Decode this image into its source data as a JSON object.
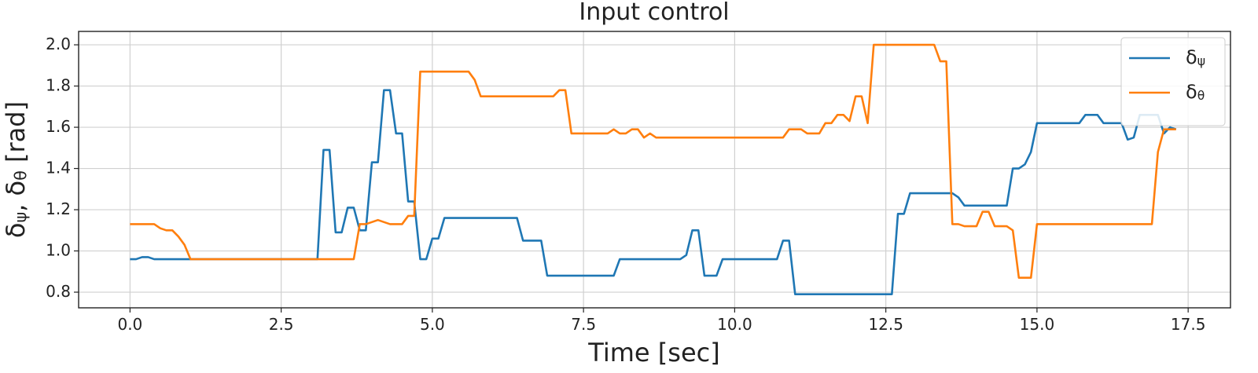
{
  "chart_data": {
    "type": "line",
    "title": "Input control",
    "xlabel": "Time [sec]",
    "ylabel": "δψ, δθ [rad]",
    "x": [
      0,
      0.1,
      0.2,
      0.3,
      0.4,
      0.5,
      0.6,
      0.7,
      0.8,
      0.9,
      1,
      1.1,
      1.2,
      1.3,
      1.4,
      1.5,
      1.6,
      1.7,
      1.8,
      1.9,
      2,
      2.1,
      2.2,
      2.3,
      2.4,
      2.5,
      2.6,
      2.7,
      2.8,
      2.9,
      3,
      3.1,
      3.2,
      3.3,
      3.4,
      3.5,
      3.6,
      3.7,
      3.8,
      3.9,
      4,
      4.1,
      4.2,
      4.3,
      4.4,
      4.5,
      4.6,
      4.7,
      4.8,
      4.9,
      5,
      5.1,
      5.2,
      5.3,
      5.4,
      5.5,
      5.6,
      5.7,
      5.8,
      5.9,
      6,
      6.1,
      6.2,
      6.3,
      6.4,
      6.5,
      6.6,
      6.7,
      6.8,
      6.9,
      7,
      7.1,
      7.2,
      7.3,
      7.4,
      7.5,
      7.6,
      7.7,
      7.8,
      7.9,
      8,
      8.1,
      8.2,
      8.3,
      8.4,
      8.5,
      8.6,
      8.7,
      8.8,
      8.9,
      9,
      9.1,
      9.2,
      9.3,
      9.4,
      9.5,
      9.6,
      9.7,
      9.8,
      9.9,
      10,
      10.1,
      10.2,
      10.3,
      10.4,
      10.5,
      10.6,
      10.7,
      10.8,
      10.9,
      11,
      11.1,
      11.2,
      11.3,
      11.4,
      11.5,
      11.6,
      11.7,
      11.8,
      11.9,
      12,
      12.1,
      12.2,
      12.3,
      12.4,
      12.5,
      12.6,
      12.7,
      12.8,
      12.9,
      13,
      13.1,
      13.2,
      13.3,
      13.4,
      13.5,
      13.6,
      13.7,
      13.8,
      13.9,
      14,
      14.1,
      14.2,
      14.3,
      14.4,
      14.5,
      14.6,
      14.7,
      14.8,
      14.9,
      15,
      15.1,
      15.2,
      15.3,
      15.4,
      15.5,
      15.6,
      15.7,
      15.8,
      15.9,
      16,
      16.1,
      16.2,
      16.3,
      16.4,
      16.5,
      16.6,
      16.7,
      16.8,
      16.9,
      17,
      17.1,
      17.2,
      17.3
    ],
    "series": [
      {
        "name": "δψ",
        "color": "#1f77b4",
        "values": [
          0.96,
          0.96,
          0.97,
          0.97,
          0.96,
          0.96,
          0.96,
          0.96,
          0.96,
          0.96,
          0.96,
          0.96,
          0.96,
          0.96,
          0.96,
          0.96,
          0.96,
          0.96,
          0.96,
          0.96,
          0.96,
          0.96,
          0.96,
          0.96,
          0.96,
          0.96,
          0.96,
          0.96,
          0.96,
          0.96,
          0.96,
          0.96,
          1.49,
          1.49,
          1.09,
          1.09,
          1.21,
          1.21,
          1.1,
          1.1,
          1.43,
          1.43,
          1.78,
          1.78,
          1.57,
          1.57,
          1.24,
          1.24,
          0.96,
          0.96,
          1.06,
          1.06,
          1.16,
          1.16,
          1.16,
          1.16,
          1.16,
          1.16,
          1.16,
          1.16,
          1.16,
          1.16,
          1.16,
          1.16,
          1.16,
          1.05,
          1.05,
          1.05,
          1.05,
          0.88,
          0.88,
          0.88,
          0.88,
          0.88,
          0.88,
          0.88,
          0.88,
          0.88,
          0.88,
          0.88,
          0.88,
          0.96,
          0.96,
          0.96,
          0.96,
          0.96,
          0.96,
          0.96,
          0.96,
          0.96,
          0.96,
          0.96,
          0.98,
          1.1,
          1.1,
          0.88,
          0.88,
          0.88,
          0.96,
          0.96,
          0.96,
          0.96,
          0.96,
          0.96,
          0.96,
          0.96,
          0.96,
          0.96,
          1.05,
          1.05,
          0.79,
          0.79,
          0.79,
          0.79,
          0.79,
          0.79,
          0.79,
          0.79,
          0.79,
          0.79,
          0.79,
          0.79,
          0.79,
          0.79,
          0.79,
          0.79,
          0.79,
          1.18,
          1.18,
          1.28,
          1.28,
          1.28,
          1.28,
          1.28,
          1.28,
          1.28,
          1.28,
          1.26,
          1.22,
          1.22,
          1.22,
          1.22,
          1.22,
          1.22,
          1.22,
          1.22,
          1.4,
          1.4,
          1.42,
          1.48,
          1.62,
          1.62,
          1.62,
          1.62,
          1.62,
          1.62,
          1.62,
          1.62,
          1.66,
          1.66,
          1.66,
          1.62,
          1.62,
          1.62,
          1.62,
          1.54,
          1.55,
          1.66,
          1.66,
          1.66,
          1.66,
          1.57,
          1.6,
          1.59
        ]
      },
      {
        "name": "δθ",
        "color": "#ff7f0e",
        "values": [
          1.13,
          1.13,
          1.13,
          1.13,
          1.13,
          1.11,
          1.1,
          1.1,
          1.07,
          1.03,
          0.96,
          0.96,
          0.96,
          0.96,
          0.96,
          0.96,
          0.96,
          0.96,
          0.96,
          0.96,
          0.96,
          0.96,
          0.96,
          0.96,
          0.96,
          0.96,
          0.96,
          0.96,
          0.96,
          0.96,
          0.96,
          0.96,
          0.96,
          0.96,
          0.96,
          0.96,
          0.96,
          0.96,
          1.13,
          1.13,
          1.14,
          1.15,
          1.14,
          1.13,
          1.13,
          1.13,
          1.17,
          1.17,
          1.87,
          1.87,
          1.87,
          1.87,
          1.87,
          1.87,
          1.87,
          1.87,
          1.87,
          1.83,
          1.75,
          1.75,
          1.75,
          1.75,
          1.75,
          1.75,
          1.75,
          1.75,
          1.75,
          1.75,
          1.75,
          1.75,
          1.75,
          1.78,
          1.78,
          1.57,
          1.57,
          1.57,
          1.57,
          1.57,
          1.57,
          1.57,
          1.59,
          1.57,
          1.57,
          1.59,
          1.59,
          1.55,
          1.57,
          1.55,
          1.55,
          1.55,
          1.55,
          1.55,
          1.55,
          1.55,
          1.55,
          1.55,
          1.55,
          1.55,
          1.55,
          1.55,
          1.55,
          1.55,
          1.55,
          1.55,
          1.55,
          1.55,
          1.55,
          1.55,
          1.55,
          1.59,
          1.59,
          1.59,
          1.57,
          1.57,
          1.57,
          1.62,
          1.62,
          1.66,
          1.66,
          1.63,
          1.75,
          1.75,
          1.62,
          2.0,
          2.0,
          2.0,
          2.0,
          2.0,
          2.0,
          2.0,
          2.0,
          2.0,
          2.0,
          2.0,
          1.92,
          1.92,
          1.13,
          1.13,
          1.12,
          1.12,
          1.12,
          1.19,
          1.19,
          1.12,
          1.12,
          1.12,
          1.1,
          0.87,
          0.87,
          0.87,
          1.13,
          1.13,
          1.13,
          1.13,
          1.13,
          1.13,
          1.13,
          1.13,
          1.13,
          1.13,
          1.13,
          1.13,
          1.13,
          1.13,
          1.13,
          1.13,
          1.13,
          1.13,
          1.13,
          1.13,
          1.48,
          1.59,
          1.59,
          1.59
        ]
      }
    ],
    "xlim": [
      -0.85,
      18.2
    ],
    "ylim": [
      0.724,
      2.065
    ],
    "xticks": [
      {
        "value": 0,
        "label": "0.0"
      },
      2.5,
      {
        "value": 5,
        "label": "5.0"
      },
      7.5,
      {
        "value": 10,
        "label": "10.0"
      },
      12.5,
      {
        "value": 15,
        "label": "15.0"
      },
      17.5
    ],
    "yticks": [
      0.8,
      {
        "value": 1,
        "label": "1.0"
      },
      1.2,
      1.4,
      1.6,
      1.8,
      {
        "value": 2,
        "label": "2.0"
      }
    ],
    "grid": true,
    "legend": "upper right"
  }
}
